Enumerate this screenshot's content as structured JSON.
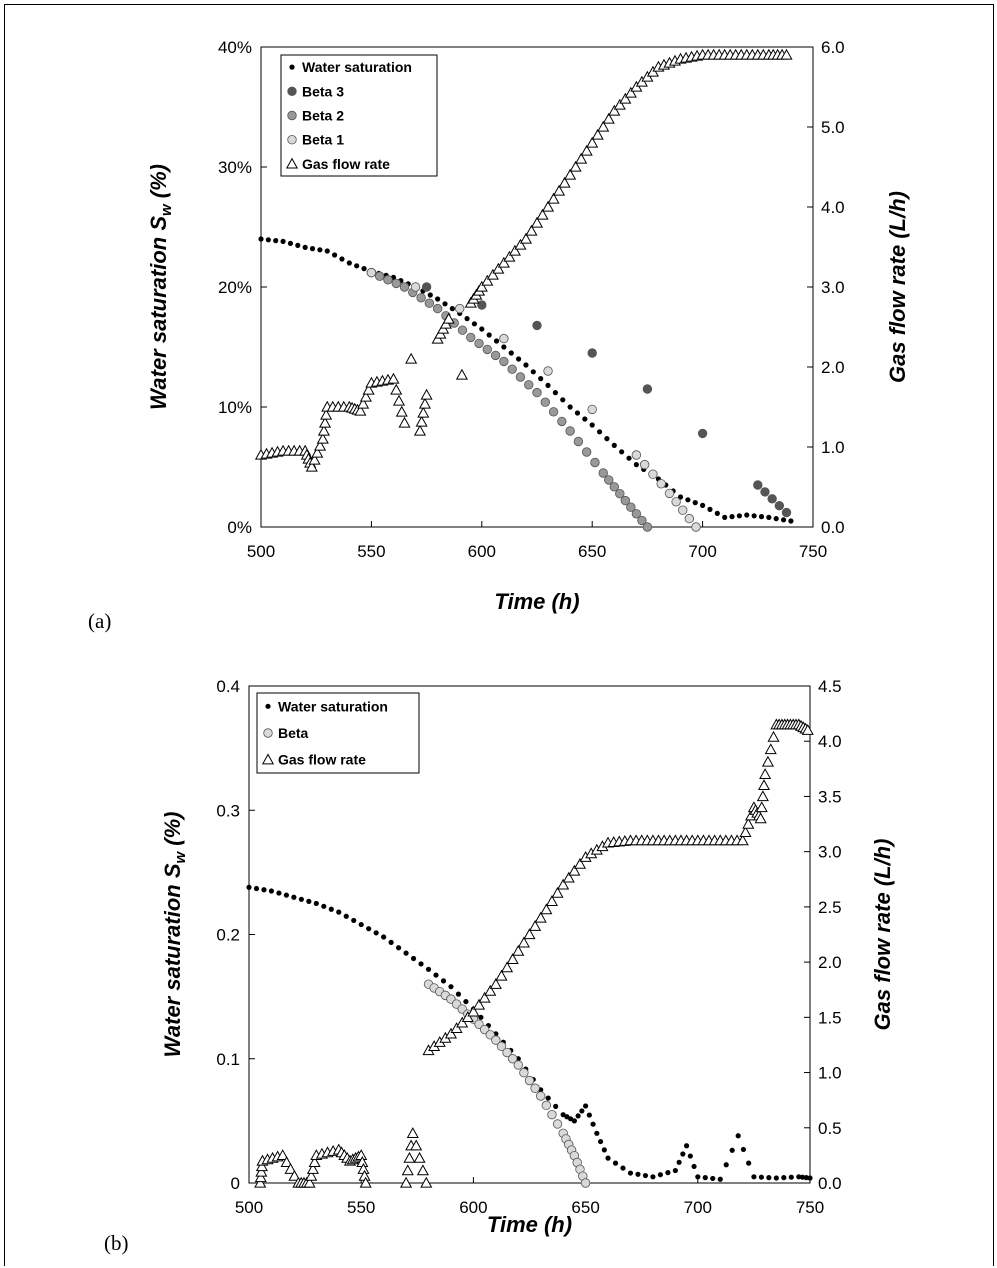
{
  "chart_data": [
    {
      "id": "a",
      "type": "scatter",
      "panel_label": "(a)",
      "xlabel": "Time (h)",
      "ylabel": "Water saturation S_w (%)",
      "ylabel_main": "Water saturation S",
      "ylabel_sub": "w",
      "ylabel_tail": " (%)",
      "y2label": "Gas flow rate (L/h)",
      "xlim": [
        500,
        750
      ],
      "ylim": [
        0,
        0.4
      ],
      "y2lim": [
        0,
        6
      ],
      "xticks": [
        "500",
        "550",
        "600",
        "650",
        "700",
        "750"
      ],
      "xtick_values": [
        500,
        550,
        600,
        650,
        700,
        750
      ],
      "yticks": [
        "0%",
        "10%",
        "20%",
        "30%",
        "40%"
      ],
      "ytick_values": [
        0,
        0.1,
        0.2,
        0.3,
        0.4
      ],
      "y2ticks": [
        "0.0",
        "1.0",
        "2.0",
        "3.0",
        "4.0",
        "5.0",
        "6.0"
      ],
      "y2tick_values": [
        0,
        1,
        2,
        3,
        4,
        5,
        6
      ],
      "grid": false,
      "legend": {
        "position": "top-left",
        "entries": [
          "Water saturation",
          "Beta 3",
          "Beta 2",
          "Beta 1",
          "Gas flow rate"
        ]
      },
      "series": [
        {
          "name": "Water saturation",
          "marker": "small-dot",
          "color": "#000000",
          "axis": "left",
          "x": [
            500,
            510,
            520,
            530,
            540,
            550,
            560,
            570,
            580,
            590,
            600,
            610,
            620,
            630,
            640,
            650,
            660,
            670,
            680,
            690,
            700,
            710,
            720,
            730,
            740
          ],
          "y": [
            0.24,
            0.238,
            0.233,
            0.23,
            0.22,
            0.213,
            0.208,
            0.2,
            0.19,
            0.178,
            0.165,
            0.15,
            0.135,
            0.118,
            0.1,
            0.085,
            0.068,
            0.052,
            0.04,
            0.025,
            0.018,
            0.008,
            0.01,
            0.008,
            0.005
          ]
        },
        {
          "name": "Beta 3",
          "marker": "circle",
          "color": "#555555",
          "axis": "left",
          "x": [
            550,
            575,
            600,
            625,
            650,
            675,
            700,
            725,
            738
          ],
          "y": [
            0.212,
            0.2,
            0.185,
            0.168,
            0.145,
            0.115,
            0.078,
            0.035,
            0.012
          ]
        },
        {
          "name": "Beta 2",
          "marker": "circle",
          "color": "#999999",
          "axis": "left",
          "x": [
            550,
            565,
            580,
            595,
            610,
            625,
            640,
            655,
            665,
            675
          ],
          "y": [
            0.212,
            0.2,
            0.182,
            0.158,
            0.138,
            0.112,
            0.08,
            0.045,
            0.022,
            0.0
          ]
        },
        {
          "name": "Beta 1",
          "marker": "circle",
          "color": "#d9d9d9",
          "axis": "left",
          "x": [
            550,
            570,
            590,
            610,
            630,
            650,
            670,
            685,
            697
          ],
          "y": [
            0.212,
            0.2,
            0.182,
            0.157,
            0.13,
            0.098,
            0.06,
            0.028,
            0.0
          ]
        },
        {
          "name": "Gas flow rate",
          "marker": "triangle",
          "color": "#000000",
          "axis": "right",
          "x": [
            500,
            510,
            520,
            523,
            528,
            530,
            540,
            545,
            550,
            560,
            565,
            568,
            572,
            575,
            580,
            585,
            591,
            595,
            600,
            610,
            620,
            630,
            640,
            650,
            660,
            670,
            680,
            690,
            700,
            710,
            720,
            730,
            738
          ],
          "y": [
            0.9,
            0.95,
            0.95,
            0.75,
            1.1,
            1.5,
            1.5,
            1.45,
            1.8,
            1.85,
            1.3,
            2.1,
            1.2,
            1.65,
            2.35,
            2.6,
            1.9,
            2.8,
            3.0,
            3.3,
            3.6,
            4.0,
            4.4,
            4.8,
            5.2,
            5.5,
            5.75,
            5.85,
            5.9,
            5.9,
            5.9,
            5.9,
            5.9
          ]
        }
      ]
    },
    {
      "id": "b",
      "type": "scatter",
      "panel_label": "(b)",
      "xlabel": "Time (h)",
      "ylabel": "Water saturation S_w (%)",
      "ylabel_main": "Water saturation S",
      "ylabel_sub": "w",
      "ylabel_tail": " (%)",
      "y2label": "Gas flow rate (L/h)",
      "xlim": [
        500,
        750
      ],
      "ylim": [
        0,
        0.4
      ],
      "y2lim": [
        0,
        4.5
      ],
      "xticks": [
        "500",
        "550",
        "600",
        "650",
        "700",
        "750"
      ],
      "xtick_values": [
        500,
        550,
        600,
        650,
        700,
        750
      ],
      "yticks": [
        "0",
        "0.1",
        "0.2",
        "0.3",
        "0.4"
      ],
      "ytick_values": [
        0,
        0.1,
        0.2,
        0.3,
        0.4
      ],
      "y2ticks": [
        "0.0",
        "0.5",
        "1.0",
        "1.5",
        "2.0",
        "2.5",
        "3.0",
        "3.5",
        "4.0",
        "4.5"
      ],
      "y2tick_values": [
        0,
        0.5,
        1,
        1.5,
        2,
        2.5,
        3,
        3.5,
        4,
        4.5
      ],
      "grid": false,
      "legend": {
        "position": "top-left",
        "entries": [
          "Water saturation",
          "Beta",
          "Gas flow rate"
        ]
      },
      "series": [
        {
          "name": "Water saturation",
          "marker": "small-dot",
          "color": "#000000",
          "axis": "left",
          "x": [
            500,
            510,
            520,
            530,
            540,
            550,
            560,
            570,
            580,
            590,
            600,
            610,
            620,
            630,
            640,
            645,
            650,
            655,
            660,
            670,
            680,
            690,
            695,
            700,
            710,
            718,
            725,
            735,
            745,
            750
          ],
          "y": [
            0.238,
            0.235,
            0.23,
            0.225,
            0.218,
            0.208,
            0.198,
            0.185,
            0.172,
            0.158,
            0.14,
            0.12,
            0.1,
            0.075,
            0.055,
            0.05,
            0.062,
            0.04,
            0.02,
            0.008,
            0.005,
            0.01,
            0.03,
            0.005,
            0.003,
            0.038,
            0.005,
            0.004,
            0.005,
            0.004
          ]
        },
        {
          "name": "Beta",
          "marker": "circle",
          "color": "#d9d9d9",
          "axis": "left",
          "x": [
            580,
            590,
            600,
            610,
            620,
            630,
            640,
            645,
            650
          ],
          "y": [
            0.16,
            0.148,
            0.132,
            0.115,
            0.095,
            0.07,
            0.04,
            0.022,
            0.0
          ]
        },
        {
          "name": "Gas flow rate",
          "marker": "triangle",
          "color": "#000000",
          "axis": "right",
          "x": [
            505,
            506,
            515,
            522,
            527,
            530,
            540,
            545,
            550,
            552,
            570,
            573,
            579,
            580,
            590,
            600,
            610,
            620,
            630,
            640,
            650,
            660,
            670,
            680,
            690,
            700,
            710,
            720,
            725,
            728,
            730,
            735,
            740,
            745,
            749
          ],
          "y": [
            0.0,
            0.2,
            0.25,
            0.0,
            0.0,
            0.25,
            0.3,
            0.2,
            0.25,
            0.0,
            0.0,
            0.45,
            0.0,
            1.2,
            1.35,
            1.55,
            1.8,
            2.1,
            2.4,
            2.7,
            2.95,
            3.08,
            3.1,
            3.1,
            3.1,
            3.1,
            3.1,
            3.1,
            3.4,
            3.3,
            3.7,
            4.15,
            4.15,
            4.15,
            4.1
          ]
        }
      ]
    }
  ]
}
